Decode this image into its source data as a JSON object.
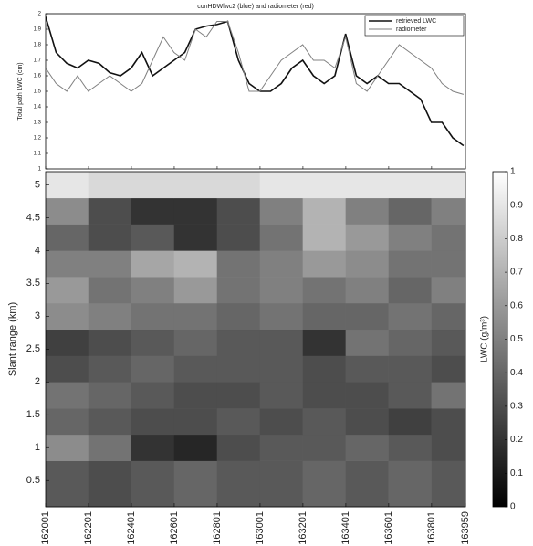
{
  "chart_data": [
    {
      "type": "line",
      "title": "conHDWlwc2 (blue) and radiometer (red)",
      "y_label": "Total path LWC (cm)",
      "x": [
        162001,
        162050,
        162100,
        162150,
        162200,
        162250,
        162300,
        162350,
        162400,
        162450,
        162500,
        162550,
        162600,
        162650,
        162700,
        162750,
        162800,
        162850,
        162900,
        162950,
        163000,
        163050,
        163100,
        163150,
        163200,
        163250,
        163300,
        163350,
        163400,
        163450,
        163500,
        163550,
        163600,
        163650,
        163700,
        163750,
        163800,
        163850,
        163900,
        163950
      ],
      "xlim": [
        162001,
        163959
      ],
      "xticks": [
        162001,
        162201,
        162401,
        162601,
        162801,
        163001,
        163201,
        163401,
        163601,
        163801,
        163959
      ],
      "ylim": [
        1,
        2
      ],
      "yticks": [
        1,
        1.1,
        1.2,
        1.3,
        1.4,
        1.5,
        1.6,
        1.7,
        1.8,
        1.9,
        2
      ],
      "legend": "top-right",
      "series": [
        {
          "name": "retrieved LWC",
          "color": "#111111",
          "values": [
            1.98,
            1.75,
            1.68,
            1.65,
            1.7,
            1.68,
            1.62,
            1.6,
            1.65,
            1.75,
            1.6,
            1.65,
            1.7,
            1.75,
            1.9,
            1.92,
            1.93,
            1.95,
            1.7,
            1.55,
            1.5,
            1.5,
            1.55,
            1.65,
            1.7,
            1.6,
            1.55,
            1.6,
            1.87,
            1.6,
            1.55,
            1.6,
            1.55,
            1.55,
            1.5,
            1.45,
            1.3,
            1.3,
            1.2,
            1.15
          ]
        },
        {
          "name": "radiometer",
          "color": "#808080",
          "values": [
            1.65,
            1.55,
            1.5,
            1.6,
            1.5,
            1.55,
            1.6,
            1.55,
            1.5,
            1.55,
            1.7,
            1.85,
            1.75,
            1.7,
            1.9,
            1.85,
            1.95,
            1.95,
            1.75,
            1.5,
            1.5,
            1.6,
            1.7,
            1.75,
            1.8,
            1.7,
            1.7,
            1.65,
            1.85,
            1.55,
            1.5,
            1.6,
            1.7,
            1.8,
            1.75,
            1.7,
            1.65,
            1.55,
            1.5,
            1.48
          ]
        }
      ]
    },
    {
      "type": "heatmap",
      "y_label": "Slant range (km)",
      "colorbar_label": "LWC (g/m³)",
      "x_edges": [
        162001,
        162200,
        162400,
        162600,
        162800,
        163000,
        163200,
        163400,
        163600,
        163800,
        163959
      ],
      "y_edges": [
        0.1,
        0.8,
        1.2,
        1.6,
        2.0,
        2.4,
        2.8,
        3.2,
        3.6,
        4.0,
        4.4,
        4.8,
        5.2
      ],
      "z": [
        [
          0.35,
          0.3,
          0.35,
          0.4,
          0.35,
          0.35,
          0.4,
          0.35,
          0.4,
          0.35
        ],
        [
          0.55,
          0.45,
          0.2,
          0.15,
          0.3,
          0.35,
          0.35,
          0.4,
          0.35,
          0.3
        ],
        [
          0.4,
          0.35,
          0.3,
          0.3,
          0.35,
          0.3,
          0.35,
          0.3,
          0.25,
          0.3
        ],
        [
          0.45,
          0.4,
          0.35,
          0.3,
          0.3,
          0.35,
          0.3,
          0.3,
          0.35,
          0.45
        ],
        [
          0.3,
          0.35,
          0.4,
          0.35,
          0.35,
          0.35,
          0.3,
          0.35,
          0.35,
          0.3
        ],
        [
          0.25,
          0.3,
          0.35,
          0.4,
          0.35,
          0.35,
          0.2,
          0.45,
          0.4,
          0.35
        ],
        [
          0.55,
          0.5,
          0.45,
          0.45,
          0.4,
          0.45,
          0.4,
          0.4,
          0.45,
          0.4
        ],
        [
          0.6,
          0.45,
          0.5,
          0.6,
          0.45,
          0.5,
          0.45,
          0.5,
          0.4,
          0.5
        ],
        [
          0.5,
          0.5,
          0.65,
          0.7,
          0.45,
          0.5,
          0.6,
          0.55,
          0.45,
          0.45
        ],
        [
          0.4,
          0.3,
          0.35,
          0.2,
          0.3,
          0.45,
          0.7,
          0.6,
          0.5,
          0.45
        ],
        [
          0.55,
          0.3,
          0.2,
          0.2,
          0.3,
          0.5,
          0.7,
          0.5,
          0.4,
          0.5
        ],
        [
          0.9,
          0.85,
          0.85,
          0.85,
          0.85,
          0.9,
          0.9,
          0.9,
          0.9,
          0.9
        ]
      ],
      "xlim": [
        162001,
        163959
      ],
      "xticks": [
        162001,
        162201,
        162401,
        162601,
        162801,
        163001,
        163201,
        163401,
        163601,
        163801,
        163959
      ],
      "ylim": [
        0.1,
        5.2
      ],
      "yticks": [
        0.5,
        1,
        1.5,
        2,
        2.5,
        3,
        3.5,
        4,
        4.5,
        5
      ],
      "zlim": [
        0,
        1
      ],
      "zticks": [
        0,
        0.1,
        0.2,
        0.3,
        0.4,
        0.5,
        0.6,
        0.7,
        0.8,
        0.9,
        1
      ],
      "colormap": "gray"
    }
  ]
}
